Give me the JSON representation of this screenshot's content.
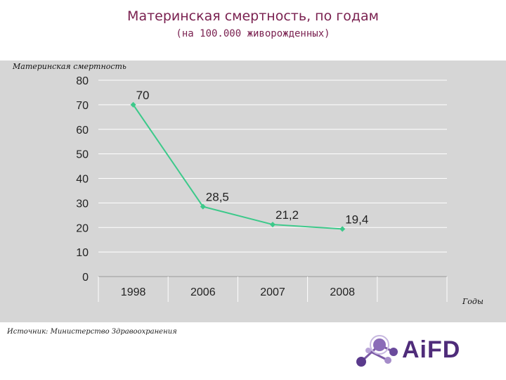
{
  "header": {
    "title": "Материнская смертность, по годам",
    "subtitle": "(на 100.000 живорожденных)"
  },
  "chart_data": {
    "type": "line",
    "x": [
      "1998",
      "2006",
      "2007",
      "2008"
    ],
    "series": [
      {
        "values": [
          70,
          28.5,
          21.2,
          19.4
        ],
        "labels": [
          "70",
          "28,5",
          "21,2",
          "19,4"
        ]
      }
    ],
    "ylabel": "Материнская смертность",
    "xlabel": "Годы",
    "ylim": [
      0,
      80
    ],
    "yticks": [
      0,
      10,
      20,
      30,
      40,
      50,
      60,
      70,
      80
    ],
    "grid": true,
    "line_color": "#3cc98a"
  },
  "footer": {
    "source": "Источник: Министерство Здравоохранения",
    "logo_text": "AiFD"
  }
}
